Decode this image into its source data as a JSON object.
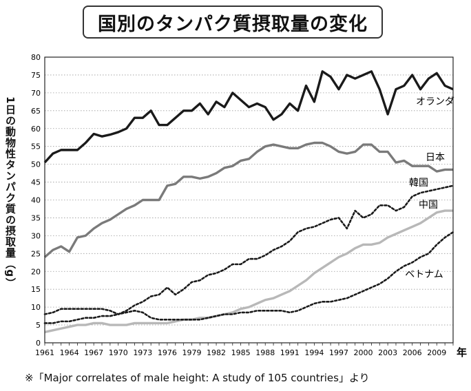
{
  "chart_data": {
    "type": "line",
    "title": "国別のタンパク質摂取量の変化",
    "ylabel": "1日の動物性タンパク質の摂取量（g）",
    "xlabel": "年",
    "xlim": [
      1961,
      2011
    ],
    "ylim": [
      0,
      80
    ],
    "yticks": [
      0,
      5,
      10,
      15,
      20,
      25,
      30,
      35,
      40,
      45,
      50,
      55,
      60,
      65,
      70,
      75,
      80
    ],
    "xticks": [
      1961,
      1964,
      1967,
      1970,
      1973,
      1976,
      1979,
      1982,
      1985,
      1988,
      1991,
      1994,
      1997,
      2000,
      2003,
      2006,
      2009
    ],
    "grid": "horizontal-dotted",
    "source": "※「Major correlates of male height: A study of 105 countries」より",
    "x": [
      1961,
      1962,
      1963,
      1964,
      1965,
      1966,
      1967,
      1968,
      1969,
      1970,
      1971,
      1972,
      1973,
      1974,
      1975,
      1976,
      1977,
      1978,
      1979,
      1980,
      1981,
      1982,
      1983,
      1984,
      1985,
      1986,
      1987,
      1988,
      1989,
      1990,
      1991,
      1992,
      1993,
      1994,
      1995,
      1996,
      1997,
      1998,
      1999,
      2000,
      2001,
      2002,
      2003,
      2004,
      2005,
      2006,
      2007,
      2008,
      2009,
      2010,
      2011
    ],
    "series": [
      {
        "name": "オランダ",
        "style": "solid",
        "color": "#1a1a1a",
        "width": 3.4,
        "values": [
          50.5,
          53,
          54,
          54,
          54,
          56,
          58.5,
          57.8,
          58.3,
          59,
          60,
          63,
          63,
          65,
          61,
          61,
          63,
          65,
          65,
          67,
          64,
          67.5,
          66,
          70,
          68,
          66,
          67,
          66,
          62.5,
          64,
          67,
          65,
          72,
          67.5,
          76,
          74.5,
          71,
          75,
          74,
          75,
          76,
          71,
          64,
          71,
          72,
          75,
          71,
          74,
          75.5,
          72,
          71
        ]
      },
      {
        "name": "日本",
        "style": "solid",
        "color": "#7a7a7a",
        "width": 3.4,
        "values": [
          24,
          26,
          27,
          25.5,
          29.5,
          30,
          32,
          33.5,
          34.5,
          36,
          37.5,
          38.5,
          40,
          40,
          40,
          44,
          44.5,
          46.5,
          46.5,
          46,
          46.5,
          47.5,
          49,
          49.5,
          51,
          51.5,
          53.5,
          55,
          55.5,
          55,
          54.5,
          54.5,
          55.5,
          56,
          56,
          55,
          53.5,
          53,
          53.5,
          55.5,
          55.5,
          53.5,
          53.5,
          50.5,
          51,
          49.5,
          49.5,
          49.5,
          48,
          48.5,
          48.5
        ]
      },
      {
        "name": "韓国",
        "style": "dashed",
        "color": "#1a1a1a",
        "width": 2.6,
        "values": [
          5.5,
          5.5,
          6,
          6,
          6.5,
          7,
          7,
          7.5,
          7.5,
          8,
          9,
          10.5,
          11.5,
          13,
          13.5,
          15.5,
          13.5,
          15,
          17,
          17.5,
          19,
          19.5,
          20.5,
          22,
          22,
          23.5,
          23.5,
          24.5,
          26,
          27,
          28.5,
          31,
          32,
          32.5,
          33.5,
          34.5,
          35,
          32,
          37,
          35,
          36,
          38.5,
          38.5,
          37,
          38,
          41,
          42,
          42.5,
          43,
          43.5,
          44
        ]
      },
      {
        "name": "中国",
        "style": "solid",
        "color": "#b8b8b8",
        "width": 3.4,
        "values": [
          3,
          3.5,
          4,
          4.5,
          5,
          5,
          5.5,
          5.5,
          5,
          5,
          5,
          5.5,
          5.5,
          5.5,
          5.5,
          5.5,
          6,
          6.5,
          6.5,
          7,
          7,
          7.5,
          8,
          8.5,
          9.5,
          10,
          11,
          12,
          12.5,
          13.5,
          14.5,
          16,
          17.5,
          19.5,
          21,
          22.5,
          24,
          25,
          26.5,
          27.5,
          27.5,
          28,
          29.5,
          30.5,
          31.5,
          32.5,
          33.5,
          35,
          36.5,
          37,
          37
        ]
      },
      {
        "name": "ベトナム",
        "style": "dashed",
        "color": "#1a1a1a",
        "width": 2.6,
        "values": [
          8,
          8.5,
          9.5,
          9.5,
          9.5,
          9.5,
          9.5,
          9.5,
          9,
          8,
          8.5,
          9,
          8.5,
          7,
          6.5,
          6.5,
          6.5,
          6.5,
          6.5,
          6.5,
          7,
          7.5,
          8,
          8,
          8.5,
          8.5,
          9,
          9,
          9,
          9,
          8.5,
          9,
          10,
          11,
          11.5,
          11.5,
          12,
          12.5,
          13.5,
          14.5,
          15.5,
          16.5,
          18,
          20,
          21.5,
          22.5,
          24,
          25,
          27.5,
          29.5,
          31
        ]
      }
    ]
  }
}
